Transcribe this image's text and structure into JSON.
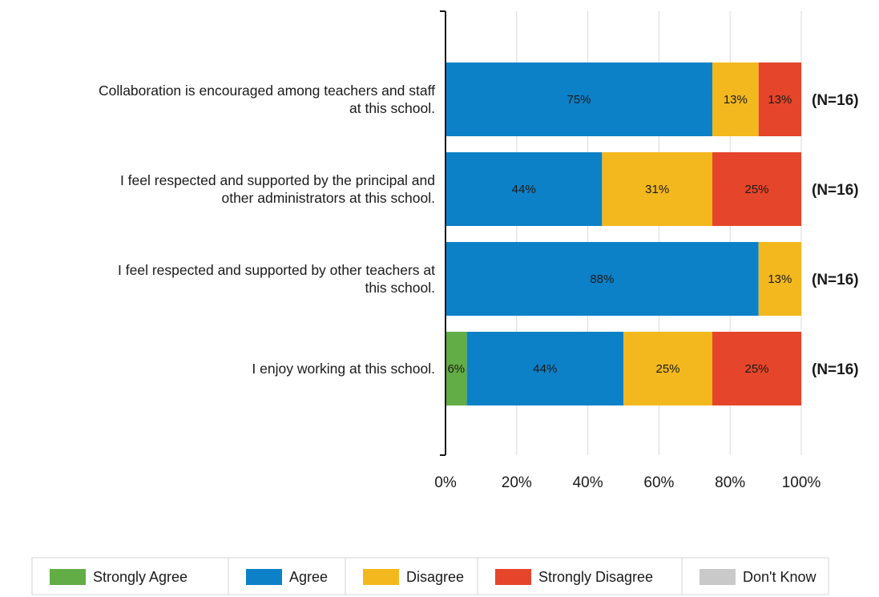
{
  "chart_data": {
    "type": "bar",
    "orientation": "horizontal",
    "stacked": true,
    "categories": [
      [
        "Collaboration is encouraged among teachers and staff",
        "at this school."
      ],
      [
        "I feel respected and supported by the principal and",
        "other administrators at this school."
      ],
      [
        "I feel respected and supported by other teachers at",
        "this school."
      ],
      [
        "I enjoy working at this school."
      ]
    ],
    "series": [
      {
        "name": "Strongly Agree",
        "color": "#62ad45",
        "values": [
          0,
          0,
          0,
          6
        ]
      },
      {
        "name": "Agree",
        "color": "#0c81c7",
        "values": [
          75,
          44,
          88,
          44
        ]
      },
      {
        "name": "Disagree",
        "color": "#f2b81e",
        "values": [
          13,
          31,
          13,
          25
        ]
      },
      {
        "name": "Strongly Disagree",
        "color": "#e5452a",
        "values": [
          13,
          25,
          0,
          25
        ]
      },
      {
        "name": "Don't Know",
        "color": "#c9c9c9",
        "values": [
          0,
          0,
          0,
          0
        ]
      }
    ],
    "data_labels": [
      [
        "",
        "75%",
        "13%",
        "13%",
        ""
      ],
      [
        "",
        "44%",
        "31%",
        "25%",
        ""
      ],
      [
        "",
        "88%",
        "13%",
        "",
        ""
      ],
      [
        "6%",
        "44%",
        "25%",
        "25%",
        ""
      ]
    ],
    "n_labels": [
      "(N=16)",
      "(N=16)",
      "(N=16)",
      "(N=16)"
    ],
    "x_ticks": [
      "0%",
      "20%",
      "40%",
      "60%",
      "80%",
      "100%"
    ],
    "xlim": [
      0,
      100
    ],
    "grid": true,
    "legend_position": "bottom",
    "title": "",
    "xlabel": "",
    "ylabel": ""
  }
}
